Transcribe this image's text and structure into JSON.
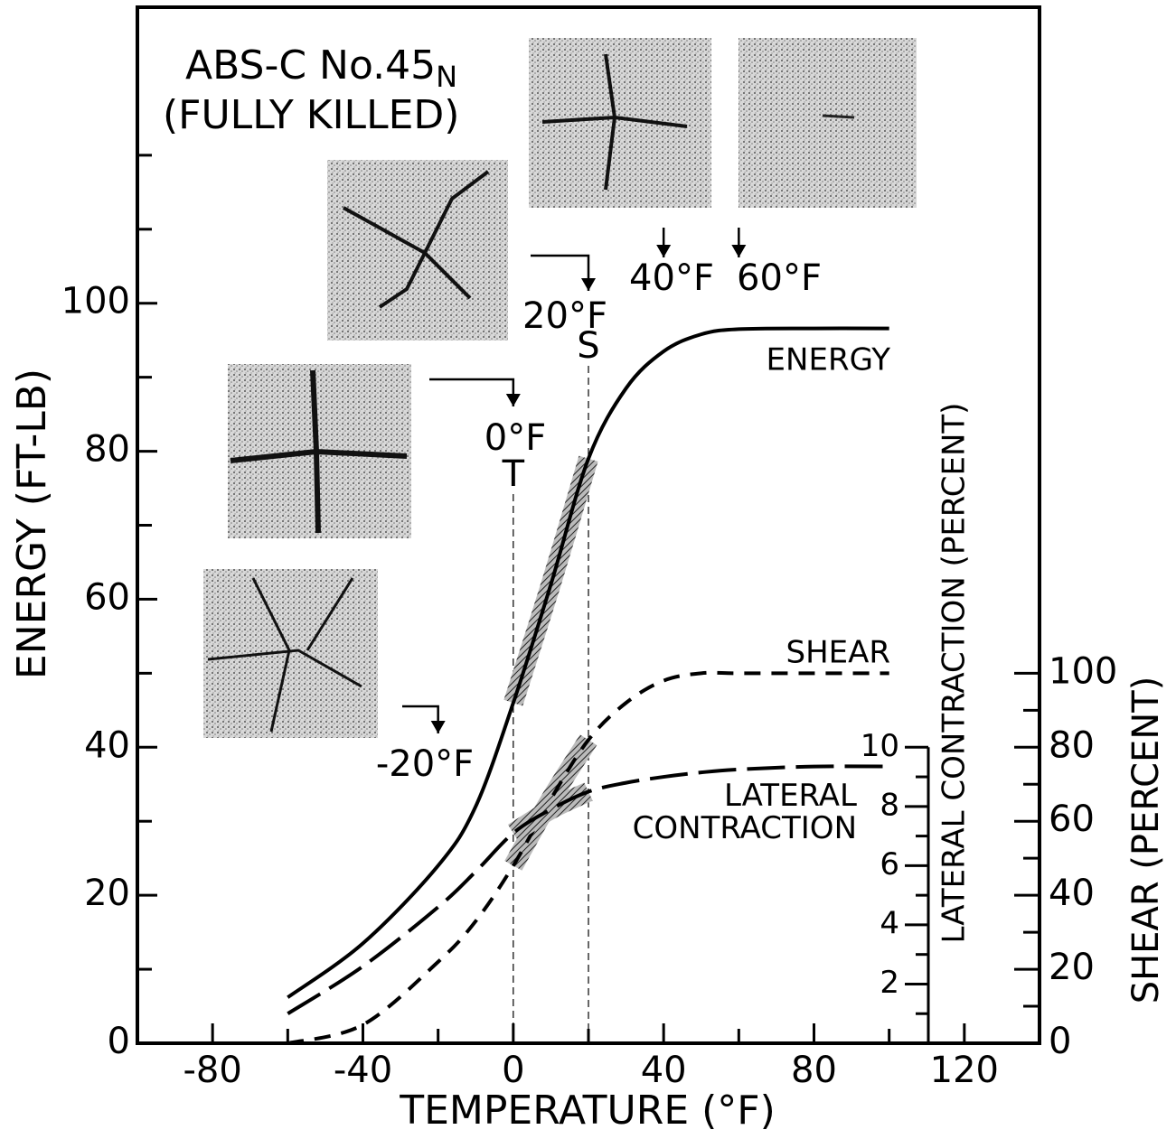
{
  "chart_data": {
    "type": "line",
    "title": "ABS-C No.45",
    "title_subscript": "N",
    "subtitle": "(FULLY KILLED)",
    "x_label": "TEMPERATURE (°F)",
    "y_label": "ENERGY (FT-LB)",
    "y2_label": "SHEAR (PERCENT)",
    "y3_label": "LATERAL CONTRACTION (PERCENT)",
    "x": [
      -60,
      -40,
      -20,
      -10,
      0,
      10,
      20,
      30,
      40,
      50,
      60,
      80,
      100
    ],
    "series": [
      {
        "name": "ENERGY",
        "color": "#000000",
        "dash": "solid",
        "values": [
          6.2,
          13.5,
          24,
          32,
          46,
          62,
          79,
          88.5,
          93.5,
          95.8,
          96.5,
          96.6,
          96.6
        ]
      },
      {
        "name": "SHEAR",
        "color": "#000000",
        "dash": "short",
        "axis": "y2",
        "values": [
          0,
          5,
          22,
          33,
          48,
          66,
          82,
          92,
          98,
          100,
          100,
          100,
          100
        ]
      },
      {
        "name": "LATERAL CONTRACTION",
        "color": "#000000",
        "dash": "long",
        "axis": "y3",
        "values": [
          1.0,
          2.6,
          4.6,
          5.8,
          7.1,
          7.9,
          8.5,
          8.8,
          9.0,
          9.15,
          9.25,
          9.35,
          9.35
        ]
      }
    ],
    "xlim": [
      -100,
      140
    ],
    "xticks": [
      -80,
      -40,
      0,
      40,
      80,
      120
    ],
    "xminorticks": [
      -60,
      -20,
      20,
      60,
      100
    ],
    "ylim": [
      0,
      140
    ],
    "yticks": [
      0,
      20,
      40,
      60,
      80,
      100
    ],
    "yminorticks": [
      10,
      30,
      50,
      70,
      90,
      110,
      120
    ],
    "y2lim": [
      0,
      280
    ],
    "y2ticks": [
      0,
      20,
      40,
      60,
      80,
      100
    ],
    "y2minorticks": [
      10,
      30,
      50,
      70,
      90
    ],
    "y3lim": [
      0,
      35
    ],
    "y3ticks": [
      2,
      4,
      6,
      8,
      10
    ],
    "y3minorticks": [
      1,
      3,
      5,
      7,
      9
    ],
    "markers": [
      {
        "x": -20,
        "label": "-20°F"
      },
      {
        "x": 0,
        "label": "0°F",
        "code": "T"
      },
      {
        "x": 20,
        "label": "20°F",
        "code": "S"
      },
      {
        "x": 40,
        "label": "40°F"
      },
      {
        "x": 60,
        "label": "60°F"
      }
    ],
    "band": [
      0,
      20
    ]
  }
}
